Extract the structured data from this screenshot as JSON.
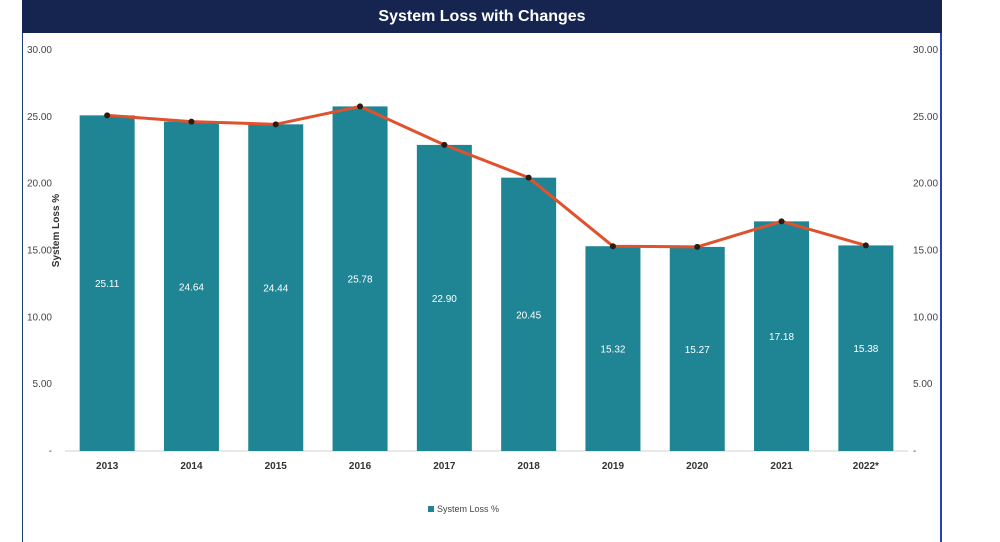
{
  "chart_data": {
    "type": "bar",
    "title": "System Loss with Changes",
    "ylabel": "System Loss %",
    "xlabel": "",
    "categories": [
      "2013",
      "2014",
      "2015",
      "2016",
      "2017",
      "2018",
      "2019",
      "2020",
      "2021",
      "2022*"
    ],
    "series": [
      {
        "name": "System Loss %",
        "type": "bar",
        "values": [
          25.11,
          24.64,
          24.44,
          25.78,
          22.9,
          20.45,
          15.32,
          15.27,
          17.18,
          15.38
        ]
      },
      {
        "type": "line",
        "values": [
          25.11,
          24.64,
          24.44,
          25.78,
          22.9,
          20.45,
          15.32,
          15.27,
          17.18,
          15.38
        ]
      }
    ],
    "data_labels": [
      "25.11",
      "24.64",
      "24.44",
      "25.78",
      "22.90",
      "20.45",
      "15.32",
      "15.27",
      "17.18",
      "15.38"
    ],
    "ylim": [
      0,
      30
    ],
    "yticks": [
      "-",
      "5.00",
      "10.00",
      "15.00",
      "20.00",
      "25.00",
      "30.00"
    ],
    "secondary_yticks": [
      "-",
      "5.00",
      "10.00",
      "15.00",
      "20.00",
      "25.00",
      "30.00"
    ],
    "legend": {
      "position": "bottom",
      "entries": [
        "System Loss %"
      ]
    },
    "grid": false,
    "colors": {
      "bar": "#1f8494",
      "line": "#e0512d",
      "marker": "#2b1b16",
      "title_bg": "#15254f"
    }
  }
}
